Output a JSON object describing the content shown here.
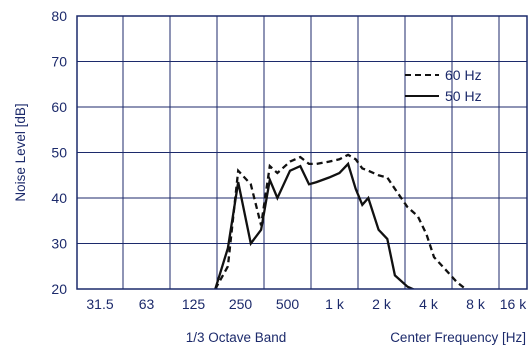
{
  "chart_data": {
    "type": "line",
    "title": "",
    "ylabel": "Noise Level [dB]",
    "xlabel_left": "1/3 Octave Band",
    "xlabel_right": "Center Frequency [Hz]",
    "ylim": [
      20,
      80
    ],
    "yticks": [
      20,
      30,
      40,
      50,
      60,
      70,
      80
    ],
    "x_scale": "log",
    "xlim_hz": [
      20,
      25000
    ],
    "xticks_hz": [
      31.5,
      63,
      125,
      250,
      500,
      1000,
      2000,
      4000,
      8000,
      16000
    ],
    "xtick_labels": [
      "31.5",
      "63",
      "125",
      "250",
      "500",
      "1 k",
      "2 k",
      "4 k",
      "8 k",
      "16 k"
    ],
    "grid": true,
    "legend_position": "top-right",
    "series": [
      {
        "name": "60 Hz",
        "style": "dashed",
        "color": "#111111",
        "x": [
          160,
          200,
          240,
          300,
          360,
          420,
          480,
          600,
          720,
          840,
          960,
          1200,
          1440,
          1680,
          1920,
          2160,
          2400,
          2880,
          3360,
          3840,
          4800,
          5760,
          6720,
          7680,
          9600,
          11520,
          13440,
          15360,
          17280,
          19200
        ],
        "y": [
          20,
          25,
          46,
          43,
          34,
          47,
          45.5,
          48,
          49,
          47.5,
          47.5,
          48,
          48.5,
          49.5,
          48.5,
          46.5,
          46,
          45,
          44.5,
          42,
          38,
          36,
          32,
          27,
          24,
          21.5,
          20,
          19.5,
          19.5,
          19.5
        ]
      },
      {
        "name": "50 Hz",
        "style": "solid",
        "color": "#111111",
        "x": [
          160,
          200,
          240,
          300,
          360,
          420,
          480,
          600,
          720,
          840,
          960,
          1200,
          1440,
          1680,
          1920,
          2160,
          2400,
          2880,
          3360,
          3840,
          4800,
          5760,
          6720,
          7680,
          9600,
          11520,
          13440,
          15360,
          17280,
          19200
        ],
        "y": [
          20,
          29,
          43.5,
          30,
          33,
          44,
          40,
          46,
          47,
          43,
          43.5,
          44.5,
          45.5,
          47.5,
          42,
          38.5,
          40,
          33,
          31,
          23,
          20.5,
          19.5,
          19.5,
          19.5,
          19.5,
          19.5,
          19.5,
          19.5,
          19.5,
          19.5
        ]
      }
    ]
  }
}
